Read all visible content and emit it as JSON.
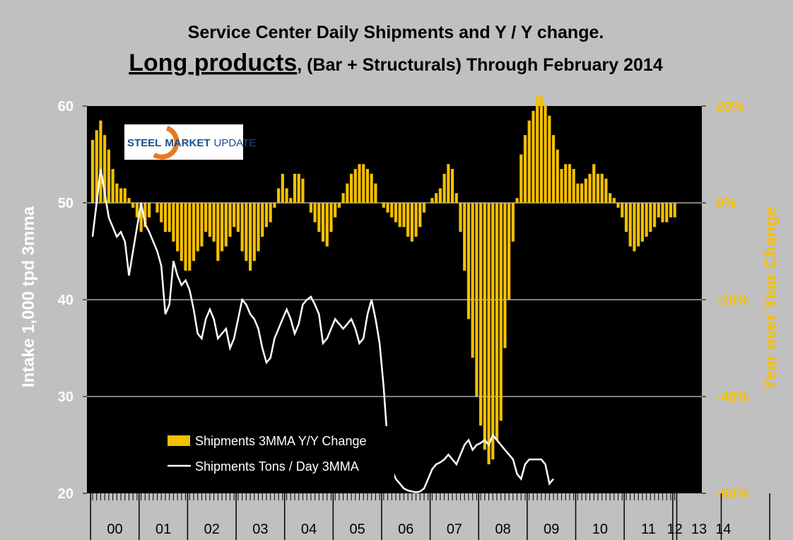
{
  "chart_data": {
    "type": "bar+line",
    "title_line1": "Service Center Daily Shipments and Y / Y change.",
    "title_line2_emph": "Long products",
    "title_line2_rest": ", (Bar + Structurals) Through February 2014",
    "ylabel_left": "Intake 1,000 tpd 3mma",
    "ylabel_right": "Year over Year Change",
    "ylim_left": [
      20,
      60
    ],
    "ylim_right": [
      -60,
      20
    ],
    "left_ticks": [
      "60",
      "50",
      "40",
      "30",
      "20"
    ],
    "right_ticks": [
      "20%",
      "0%",
      "-20%",
      "-40%",
      "-60%"
    ],
    "year_labels": [
      "00",
      "01",
      "02",
      "03",
      "04",
      "05",
      "06",
      "07",
      "08",
      "09",
      "10",
      "11",
      "12",
      "13",
      "14"
    ],
    "months_per_year": 12,
    "logo_text": {
      "a": "STEEL",
      "b": "MARKET",
      "c": "UPDATE"
    },
    "colors": {
      "bars": "#f5c000",
      "line": "#ffffff",
      "plot_bg": "#000000",
      "page_bg": "#c0c0c0",
      "right_axis": "#f5c000"
    },
    "series": [
      {
        "name": "Shipments 3MMA Y/Y Change",
        "type": "bar",
        "axis": "right",
        "values": [
          13,
          15,
          17,
          14,
          11,
          7,
          4,
          3,
          3,
          1,
          -1,
          -3,
          -6,
          -5,
          -3,
          0,
          -2,
          -4,
          -6,
          -6,
          -8,
          -10,
          -12,
          -14,
          -14,
          -12,
          -10,
          -9,
          -6,
          -7,
          -8,
          -12,
          -10,
          -9,
          -7,
          -5,
          -6,
          -10,
          -12,
          -14,
          -12,
          -10,
          -7,
          -5,
          -4,
          -1,
          3,
          6,
          3,
          1,
          6,
          6,
          5,
          0,
          -2,
          -4,
          -6,
          -8,
          -9,
          -6,
          -3,
          -1,
          2,
          4,
          6,
          7,
          8,
          8,
          7,
          6,
          4,
          0,
          -1,
          -2,
          -3,
          -4,
          -5,
          -5,
          -7,
          -8,
          -7,
          -5,
          -2,
          0,
          1,
          2,
          3,
          6,
          8,
          7,
          2,
          -6,
          -14,
          -24,
          -32,
          -40,
          -46,
          -51,
          -54,
          -53,
          -49,
          -45,
          -30,
          -20,
          -8,
          1,
          10,
          14,
          17,
          19,
          22,
          22,
          20,
          18,
          14,
          11,
          7,
          8,
          8,
          7,
          4,
          4,
          5,
          6,
          8,
          6,
          6,
          5,
          2,
          1,
          -1,
          -3,
          -6,
          -9,
          -10,
          -9,
          -8,
          -7,
          -6,
          -5,
          -3,
          -4,
          -4,
          -3,
          -3
        ]
      },
      {
        "name": "Shipments Tons / Day 3MMA",
        "type": "line",
        "axis": "left",
        "values": [
          46.5,
          50,
          53.5,
          51,
          48.5,
          47.5,
          46.5,
          47,
          46,
          42.5,
          45,
          47.5,
          50,
          47.8,
          47,
          46,
          45,
          43.5,
          38.5,
          39.5,
          44,
          42.5,
          41.5,
          42,
          41,
          39,
          36.5,
          36,
          38,
          39,
          38,
          36,
          36.5,
          37,
          35,
          36,
          38,
          40,
          39.5,
          38.5,
          38,
          37,
          35,
          33.5,
          34,
          36,
          37,
          38,
          39,
          38,
          36.5,
          37.5,
          39.5,
          40,
          40.3,
          39.5,
          38.5,
          35.5,
          36,
          37,
          38,
          37.5,
          37,
          37.5,
          38,
          37,
          35.5,
          36,
          38.5,
          40,
          38,
          35.5,
          31,
          25,
          22.5,
          21.5,
          21,
          20.5,
          20.3,
          20.2,
          20.1,
          20.2,
          20.5,
          21.5,
          22.5,
          23,
          23.2,
          23.5,
          24,
          23.5,
          23,
          24,
          25,
          25.5,
          24.5,
          25,
          25.2,
          25.5,
          25,
          26,
          25.5,
          25,
          24.5,
          24,
          23.5,
          22,
          21.5,
          23,
          23.5,
          23.5,
          23.5,
          23.5,
          23,
          21,
          21.5
        ]
      }
    ]
  }
}
